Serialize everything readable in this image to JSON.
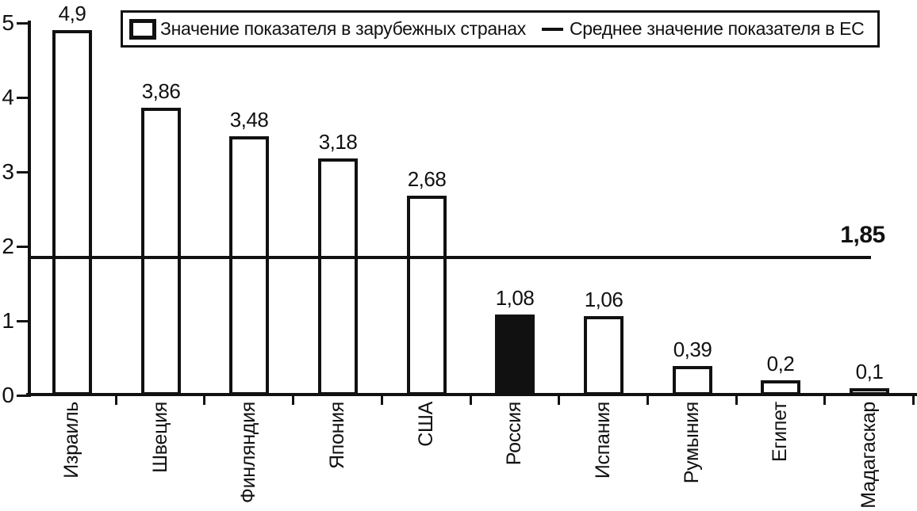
{
  "legend": {
    "items": [
      {
        "swatch": "open-bar",
        "label": "Значение показателя в зарубежных странах"
      },
      {
        "swatch": "line",
        "label": "Среднее значение показателя в ЕС"
      }
    ]
  },
  "colors": {
    "foreground": "#111111",
    "background": "#ffffff",
    "bar_fill": "#ffffff",
    "bar_border": "#111111",
    "highlight_fill": "#111111"
  },
  "chart_data": {
    "type": "bar",
    "title": "",
    "xlabel": "",
    "ylabel": "",
    "categories": [
      "Израиль",
      "Швеция",
      "Финляндия",
      "Япония",
      "США",
      "Россия",
      "Испания",
      "Румыния",
      "Египет",
      "Мадагаскар"
    ],
    "values": [
      4.9,
      3.86,
      3.48,
      3.18,
      2.68,
      1.08,
      1.06,
      0.39,
      0.2,
      0.1
    ],
    "value_labels": [
      "4,9",
      "3,86",
      "3,48",
      "3,18",
      "2,68",
      "1,08",
      "1,06",
      "0,39",
      "0,2",
      "0,1"
    ],
    "highlight_index": 5,
    "highlighted_category": "Россия",
    "mean_line": {
      "value": 1.85,
      "label": "1,85"
    },
    "ylim": [
      0,
      5
    ],
    "yticks": [
      0,
      1,
      2,
      3,
      4,
      5
    ],
    "ytick_labels": [
      "0",
      "1",
      "2",
      "3",
      "4",
      "5"
    ],
    "grid": false,
    "legend_position": "top",
    "x_labels_rotated_bottom_to_top": true
  }
}
